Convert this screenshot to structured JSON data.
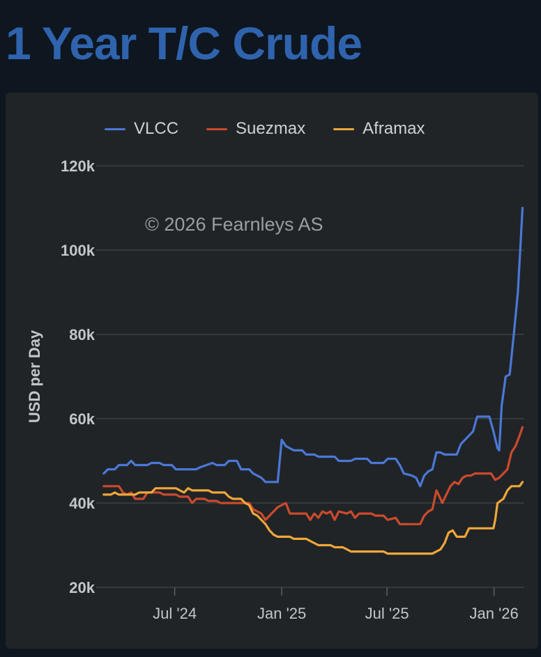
{
  "page": {
    "title": "1 Year T/C Crude"
  },
  "chart_data": {
    "type": "line",
    "title": "1 Year T/C Crude",
    "ylabel": "USD per Day",
    "xlabel": "",
    "watermark": "© 2026 Fearnleys AS",
    "ylim": [
      20000,
      120000
    ],
    "yticks": [
      20000,
      40000,
      60000,
      80000,
      100000,
      120000
    ],
    "ytick_labels": [
      "20k",
      "40k",
      "60k",
      "80k",
      "100k",
      "120k"
    ],
    "xlim": [
      "2024-02-17",
      "2026-02-22"
    ],
    "xticks": [
      "2024-07-01",
      "2025-01-01",
      "2025-07-01",
      "2026-01-01"
    ],
    "xtick_labels": [
      "Jul '24",
      "Jan '25",
      "Jul '25",
      "Jan '26"
    ],
    "legend_position": "top",
    "grid": true,
    "series": [
      {
        "name": "VLCC",
        "color": "#4b78d6",
        "points": [
          [
            "2024-03-01",
            47000
          ],
          [
            "2024-03-08",
            48000
          ],
          [
            "2024-03-20",
            48000
          ],
          [
            "2024-03-27",
            49000
          ],
          [
            "2024-04-10",
            49000
          ],
          [
            "2024-04-17",
            50000
          ],
          [
            "2024-04-24",
            49000
          ],
          [
            "2024-05-15",
            49000
          ],
          [
            "2024-05-22",
            49500
          ],
          [
            "2024-06-05",
            49500
          ],
          [
            "2024-06-12",
            49000
          ],
          [
            "2024-06-26",
            49000
          ],
          [
            "2024-07-03",
            48000
          ],
          [
            "2024-08-07",
            48000
          ],
          [
            "2024-08-14",
            48500
          ],
          [
            "2024-09-04",
            49500
          ],
          [
            "2024-09-11",
            49000
          ],
          [
            "2024-09-25",
            49000
          ],
          [
            "2024-10-02",
            50000
          ],
          [
            "2024-10-16",
            50000
          ],
          [
            "2024-10-23",
            48000
          ],
          [
            "2024-11-06",
            48000
          ],
          [
            "2024-11-13",
            47000
          ],
          [
            "2024-11-27",
            46000
          ],
          [
            "2024-12-04",
            45000
          ],
          [
            "2024-12-25",
            45000
          ],
          [
            "2025-01-01",
            55000
          ],
          [
            "2025-01-08",
            53500
          ],
          [
            "2025-01-15",
            53000
          ],
          [
            "2025-01-22",
            52500
          ],
          [
            "2025-02-05",
            52500
          ],
          [
            "2025-02-12",
            51500
          ],
          [
            "2025-02-26",
            51500
          ],
          [
            "2025-03-05",
            51000
          ],
          [
            "2025-04-02",
            51000
          ],
          [
            "2025-04-09",
            50000
          ],
          [
            "2025-04-30",
            50000
          ],
          [
            "2025-05-07",
            50500
          ],
          [
            "2025-05-28",
            50500
          ],
          [
            "2025-06-04",
            49500
          ],
          [
            "2025-06-25",
            49500
          ],
          [
            "2025-07-02",
            50500
          ],
          [
            "2025-07-16",
            50500
          ],
          [
            "2025-07-23",
            49000
          ],
          [
            "2025-07-30",
            47000
          ],
          [
            "2025-08-13",
            46500
          ],
          [
            "2025-08-20",
            46000
          ],
          [
            "2025-08-27",
            44000
          ],
          [
            "2025-09-03",
            46500
          ],
          [
            "2025-09-10",
            47500
          ],
          [
            "2025-09-17",
            48000
          ],
          [
            "2025-09-24",
            52000
          ],
          [
            "2025-10-01",
            52000
          ],
          [
            "2025-10-08",
            51500
          ],
          [
            "2025-10-29",
            51500
          ],
          [
            "2025-11-05",
            54000
          ],
          [
            "2025-11-12",
            55000
          ],
          [
            "2025-11-26",
            57000
          ],
          [
            "2025-12-03",
            60500
          ],
          [
            "2025-12-24",
            60500
          ],
          [
            "2025-12-31",
            57000
          ],
          [
            "2026-01-07",
            53000
          ],
          [
            "2026-01-10",
            52500
          ],
          [
            "2026-01-14",
            63000
          ],
          [
            "2026-01-21",
            70000
          ],
          [
            "2026-01-28",
            70500
          ],
          [
            "2026-02-04",
            80000
          ],
          [
            "2026-02-11",
            90000
          ],
          [
            "2026-02-15",
            100000
          ],
          [
            "2026-02-19",
            110000
          ]
        ]
      },
      {
        "name": "Suezmax",
        "color": "#cc4a2c",
        "points": [
          [
            "2024-03-01",
            44000
          ],
          [
            "2024-03-27",
            44000
          ],
          [
            "2024-04-03",
            42500
          ],
          [
            "2024-04-10",
            42000
          ],
          [
            "2024-04-17",
            42500
          ],
          [
            "2024-04-24",
            41000
          ],
          [
            "2024-05-08",
            41000
          ],
          [
            "2024-05-15",
            42500
          ],
          [
            "2024-06-05",
            42500
          ],
          [
            "2024-06-12",
            42000
          ],
          [
            "2024-07-03",
            42000
          ],
          [
            "2024-07-10",
            41500
          ],
          [
            "2024-07-24",
            41500
          ],
          [
            "2024-07-31",
            40000
          ],
          [
            "2024-08-07",
            41000
          ],
          [
            "2024-08-21",
            41000
          ],
          [
            "2024-08-28",
            40500
          ],
          [
            "2024-09-11",
            40500
          ],
          [
            "2024-09-18",
            40000
          ],
          [
            "2024-11-06",
            40000
          ],
          [
            "2024-11-13",
            38500
          ],
          [
            "2024-11-27",
            37500
          ],
          [
            "2024-12-04",
            36000
          ],
          [
            "2024-12-11",
            37000
          ],
          [
            "2024-12-18",
            38000
          ],
          [
            "2024-12-25",
            39000
          ],
          [
            "2025-01-01",
            39500
          ],
          [
            "2025-01-08",
            40000
          ],
          [
            "2025-01-15",
            37500
          ],
          [
            "2025-02-12",
            37500
          ],
          [
            "2025-02-19",
            36000
          ],
          [
            "2025-02-26",
            37500
          ],
          [
            "2025-03-05",
            36500
          ],
          [
            "2025-03-12",
            38000
          ],
          [
            "2025-03-19",
            37500
          ],
          [
            "2025-03-26",
            38000
          ],
          [
            "2025-04-02",
            36000
          ],
          [
            "2025-04-09",
            38000
          ],
          [
            "2025-04-23",
            37500
          ],
          [
            "2025-04-30",
            38000
          ],
          [
            "2025-05-07",
            36500
          ],
          [
            "2025-05-14",
            37500
          ],
          [
            "2025-06-04",
            37500
          ],
          [
            "2025-06-11",
            37000
          ],
          [
            "2025-06-25",
            37000
          ],
          [
            "2025-07-02",
            36000
          ],
          [
            "2025-07-16",
            36500
          ],
          [
            "2025-07-23",
            35000
          ],
          [
            "2025-08-27",
            35000
          ],
          [
            "2025-09-03",
            37000
          ],
          [
            "2025-09-10",
            38000
          ],
          [
            "2025-09-17",
            38500
          ],
          [
            "2025-09-24",
            43000
          ],
          [
            "2025-10-01",
            41000
          ],
          [
            "2025-10-04",
            40000
          ],
          [
            "2025-10-11",
            42000
          ],
          [
            "2025-10-18",
            44000
          ],
          [
            "2025-10-25",
            45000
          ],
          [
            "2025-11-01",
            44500
          ],
          [
            "2025-11-08",
            46000
          ],
          [
            "2025-11-15",
            46500
          ],
          [
            "2025-11-22",
            46500
          ],
          [
            "2025-11-29",
            47000
          ],
          [
            "2025-12-27",
            47000
          ],
          [
            "2026-01-03",
            45500
          ],
          [
            "2026-01-10",
            46000
          ],
          [
            "2026-01-17",
            47000
          ],
          [
            "2026-01-24",
            48000
          ],
          [
            "2026-01-31",
            52000
          ],
          [
            "2026-02-07",
            53500
          ],
          [
            "2026-02-14",
            56000
          ],
          [
            "2026-02-19",
            58000
          ]
        ]
      },
      {
        "name": "Aframax",
        "color": "#f0a73a",
        "points": [
          [
            "2024-03-01",
            42000
          ],
          [
            "2024-03-13",
            42000
          ],
          [
            "2024-03-20",
            42500
          ],
          [
            "2024-03-27",
            42000
          ],
          [
            "2024-04-24",
            42000
          ],
          [
            "2024-05-01",
            42500
          ],
          [
            "2024-05-22",
            42500
          ],
          [
            "2024-05-29",
            43500
          ],
          [
            "2024-07-03",
            43500
          ],
          [
            "2024-07-10",
            43000
          ],
          [
            "2024-07-17",
            42500
          ],
          [
            "2024-07-24",
            43500
          ],
          [
            "2024-07-31",
            43000
          ],
          [
            "2024-08-28",
            43000
          ],
          [
            "2024-09-04",
            42500
          ],
          [
            "2024-09-25",
            42500
          ],
          [
            "2024-10-02",
            41500
          ],
          [
            "2024-10-09",
            41000
          ],
          [
            "2024-10-23",
            41000
          ],
          [
            "2024-10-30",
            40000
          ],
          [
            "2024-11-06",
            39500
          ],
          [
            "2024-11-13",
            37500
          ],
          [
            "2024-11-20",
            37000
          ],
          [
            "2024-11-27",
            36000
          ],
          [
            "2024-12-04",
            35000
          ],
          [
            "2024-12-11",
            33500
          ],
          [
            "2024-12-18",
            32500
          ],
          [
            "2024-12-25",
            32000
          ],
          [
            "2025-01-15",
            32000
          ],
          [
            "2025-01-22",
            31500
          ],
          [
            "2025-02-12",
            31500
          ],
          [
            "2025-02-19",
            31000
          ],
          [
            "2025-02-26",
            30500
          ],
          [
            "2025-03-05",
            30000
          ],
          [
            "2025-03-26",
            30000
          ],
          [
            "2025-04-02",
            29500
          ],
          [
            "2025-04-16",
            29500
          ],
          [
            "2025-04-23",
            29000
          ],
          [
            "2025-04-30",
            28500
          ],
          [
            "2025-06-25",
            28500
          ],
          [
            "2025-07-02",
            28000
          ],
          [
            "2025-09-17",
            28000
          ],
          [
            "2025-09-24",
            28500
          ],
          [
            "2025-10-01",
            29000
          ],
          [
            "2025-10-08",
            30500
          ],
          [
            "2025-10-15",
            33000
          ],
          [
            "2025-10-22",
            33500
          ],
          [
            "2025-10-29",
            32000
          ],
          [
            "2025-11-12",
            32000
          ],
          [
            "2025-11-19",
            34000
          ],
          [
            "2025-12-31",
            34000
          ],
          [
            "2026-01-03",
            36000
          ],
          [
            "2026-01-07",
            40000
          ],
          [
            "2026-01-17",
            41000
          ],
          [
            "2026-01-24",
            43000
          ],
          [
            "2026-01-31",
            44000
          ],
          [
            "2026-02-14",
            44000
          ],
          [
            "2026-02-19",
            45000
          ]
        ]
      }
    ]
  }
}
